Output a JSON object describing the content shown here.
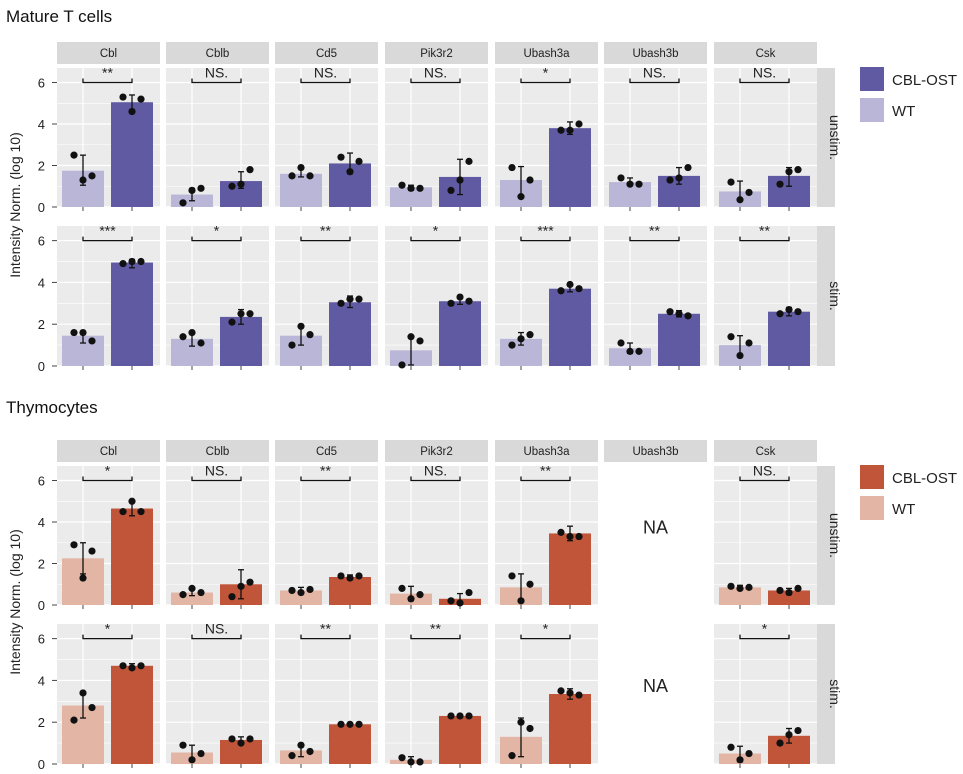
{
  "colors": {
    "panel_bg": "#ebebeb",
    "strip_bg": "#d9d9d9",
    "grid": "#ffffff",
    "mature_ost": "#5f5aa2",
    "mature_wt": "#b9b6d8",
    "thymo_ost": "#c0553a",
    "thymo_wt": "#e2b5a4",
    "point": "#111111",
    "text": "#222222"
  },
  "chart_data": [
    {
      "type": "bar",
      "title": "Mature T cells",
      "ylabel": "Intensity Norm. (log 10)",
      "ylim": [
        0,
        6.7
      ],
      "yticks": [
        "0",
        "2",
        "4",
        "6"
      ],
      "legend": {
        "entries": [
          "CBL-OST",
          "WT"
        ],
        "placement": "top-right"
      },
      "genes": [
        "Cbl",
        "Cblb",
        "Cd5",
        "Pik3r2",
        "Ubash3a",
        "Ubash3b",
        "Csk"
      ],
      "conditions": [
        "unstim.",
        "stim."
      ],
      "na_text": "NA",
      "groups": [
        "WT",
        "CBL-OST"
      ],
      "panels": [
        [
          {
            "wt": 1.75,
            "ost": 5.05,
            "wt_err": [
              1.05,
              2.5
            ],
            "ost_err": [
              4.7,
              5.4
            ],
            "wt_pts": [
              2.5,
              1.3,
              1.5
            ],
            "ost_pts": [
              5.3,
              4.6,
              5.2
            ],
            "sig": "**"
          },
          {
            "wt": 0.6,
            "ost": 1.25,
            "wt_err": [
              0.3,
              0.9
            ],
            "ost_err": [
              0.9,
              1.7
            ],
            "wt_pts": [
              0.2,
              0.8,
              0.9
            ],
            "ost_pts": [
              1.0,
              1.1,
              1.8
            ],
            "sig": "NS."
          },
          {
            "wt": 1.6,
            "ost": 2.1,
            "wt_err": [
              1.45,
              1.85
            ],
            "ost_err": [
              1.6,
              2.6
            ],
            "wt_pts": [
              1.5,
              1.9,
              1.5
            ],
            "ost_pts": [
              2.4,
              1.7,
              2.2
            ],
            "sig": "NS."
          },
          {
            "wt": 0.95,
            "ost": 1.45,
            "wt_err": [
              0.8,
              1.05
            ],
            "ost_err": [
              0.6,
              2.3
            ],
            "wt_pts": [
              1.05,
              0.9,
              0.9
            ],
            "ost_pts": [
              0.8,
              1.3,
              2.2
            ],
            "sig": "NS."
          },
          {
            "wt": 1.3,
            "ost": 3.8,
            "wt_err": [
              0.5,
              1.95
            ],
            "ost_err": [
              3.5,
              4.1
            ],
            "wt_pts": [
              1.9,
              0.5,
              1.3
            ],
            "ost_pts": [
              3.7,
              3.7,
              4.0
            ],
            "sig": "*"
          },
          {
            "wt": 1.2,
            "ost": 1.5,
            "wt_err": [
              1.1,
              1.4
            ],
            "ost_err": [
              1.1,
              1.9
            ],
            "wt_pts": [
              1.4,
              1.1,
              1.1
            ],
            "ost_pts": [
              1.3,
              1.4,
              1.9
            ],
            "sig": "NS."
          },
          {
            "wt": 0.75,
            "ost": 1.5,
            "wt_err": [
              0.35,
              1.25
            ],
            "ost_err": [
              1.0,
              1.9
            ],
            "wt_pts": [
              1.2,
              0.35,
              0.7
            ],
            "ost_pts": [
              1.1,
              1.7,
              1.8
            ],
            "sig": "NS."
          }
        ],
        [
          {
            "wt": 1.45,
            "ost": 4.95,
            "wt_err": [
              1.1,
              1.65
            ],
            "ost_err": [
              4.7,
              5.1
            ],
            "wt_pts": [
              1.6,
              1.6,
              1.2
            ],
            "ost_pts": [
              4.9,
              5.0,
              5.0
            ],
            "sig": "***"
          },
          {
            "wt": 1.3,
            "ost": 2.35,
            "wt_err": [
              0.95,
              1.65
            ],
            "ost_err": [
              2.0,
              2.7
            ],
            "wt_pts": [
              1.4,
              1.6,
              1.1
            ],
            "ost_pts": [
              2.1,
              2.5,
              2.5
            ],
            "sig": "*"
          },
          {
            "wt": 1.45,
            "ost": 3.05,
            "wt_err": [
              1.0,
              1.9
            ],
            "ost_err": [
              2.8,
              3.35
            ],
            "wt_pts": [
              1.0,
              1.9,
              1.5
            ],
            "ost_pts": [
              3.0,
              3.2,
              3.2
            ],
            "sig": "**"
          },
          {
            "wt": 0.75,
            "ost": 3.1,
            "wt_err": [
              0.05,
              1.45
            ],
            "ost_err": [
              2.95,
              3.25
            ],
            "wt_pts": [
              0.05,
              1.4,
              1.2
            ],
            "ost_pts": [
              3.0,
              3.3,
              3.1
            ],
            "sig": "*"
          },
          {
            "wt": 1.3,
            "ost": 3.7,
            "wt_err": [
              1.0,
              1.6
            ],
            "ost_err": [
              3.55,
              3.9
            ],
            "wt_pts": [
              1.0,
              1.3,
              1.5
            ],
            "ost_pts": [
              3.6,
              3.9,
              3.7
            ],
            "sig": "***"
          },
          {
            "wt": 0.85,
            "ost": 2.5,
            "wt_err": [
              0.6,
              1.1
            ],
            "ost_err": [
              2.35,
              2.65
            ],
            "wt_pts": [
              1.1,
              0.7,
              0.7
            ],
            "ost_pts": [
              2.6,
              2.5,
              2.4
            ],
            "sig": "**"
          },
          {
            "wt": 1.0,
            "ost": 2.6,
            "wt_err": [
              0.5,
              1.45
            ],
            "ost_err": [
              2.4,
              2.8
            ],
            "wt_pts": [
              1.4,
              0.5,
              1.1
            ],
            "ost_pts": [
              2.5,
              2.7,
              2.6
            ],
            "sig": "**"
          }
        ]
      ]
    },
    {
      "type": "bar",
      "title": "Thymocytes",
      "ylabel": "Intensity Norm. (log 10)",
      "ylim": [
        0,
        6.7
      ],
      "yticks": [
        "0",
        "2",
        "4",
        "6"
      ],
      "legend": {
        "entries": [
          "CBL-OST",
          "WT"
        ],
        "placement": "top-right"
      },
      "genes": [
        "Cbl",
        "Cblb",
        "Cd5",
        "Pik3r2",
        "Ubash3a",
        "Ubash3b",
        "Csk"
      ],
      "conditions": [
        "unstim.",
        "stim."
      ],
      "na_text": "NA",
      "groups": [
        "WT",
        "CBL-OST"
      ],
      "panels": [
        [
          {
            "wt": 2.25,
            "ost": 4.65,
            "wt_err": [
              1.5,
              3.0
            ],
            "ost_err": [
              4.3,
              5.0
            ],
            "wt_pts": [
              2.9,
              1.3,
              2.6
            ],
            "ost_pts": [
              4.5,
              5.0,
              4.5
            ],
            "sig": "*"
          },
          {
            "wt": 0.6,
            "ost": 1.0,
            "wt_err": [
              0.45,
              0.8
            ],
            "ost_err": [
              0.3,
              1.7
            ],
            "wt_pts": [
              0.5,
              0.8,
              0.6
            ],
            "ost_pts": [
              0.4,
              0.9,
              1.1
            ],
            "sig": "NS."
          },
          {
            "wt": 0.7,
            "ost": 1.35,
            "wt_err": [
              0.55,
              0.85
            ],
            "ost_err": [
              1.3,
              1.45
            ],
            "wt_pts": [
              0.7,
              0.6,
              0.75
            ],
            "ost_pts": [
              1.4,
              1.3,
              1.4
            ],
            "sig": "**"
          },
          {
            "wt": 0.55,
            "ost": 0.3,
            "wt_err": [
              0.2,
              0.9
            ],
            "ost_err": [
              0.05,
              0.55
            ],
            "wt_pts": [
              0.8,
              0.3,
              0.5
            ],
            "ost_pts": [
              0.2,
              0.1,
              0.6
            ],
            "sig": "NS."
          },
          {
            "wt": 0.85,
            "ost": 3.45,
            "wt_err": [
              0.2,
              1.5
            ],
            "ost_err": [
              3.1,
              3.8
            ],
            "wt_pts": [
              1.4,
              0.2,
              1.0
            ],
            "ost_pts": [
              3.5,
              3.3,
              3.3
            ],
            "sig": "**"
          },
          null,
          {
            "wt": 0.85,
            "ost": 0.7,
            "wt_err": [
              0.75,
              0.95
            ],
            "ost_err": [
              0.5,
              0.8
            ],
            "wt_pts": [
              0.9,
              0.8,
              0.85
            ],
            "ost_pts": [
              0.7,
              0.6,
              0.8
            ],
            "sig": "NS."
          }
        ],
        [
          {
            "wt": 2.8,
            "ost": 4.7,
            "wt_err": [
              2.2,
              3.4
            ],
            "ost_err": [
              4.6,
              4.8
            ],
            "wt_pts": [
              2.1,
              3.4,
              2.7
            ],
            "ost_pts": [
              4.7,
              4.6,
              4.7
            ],
            "sig": "*"
          },
          {
            "wt": 0.55,
            "ost": 1.15,
            "wt_err": [
              0.2,
              0.9
            ],
            "ost_err": [
              1.0,
              1.3
            ],
            "wt_pts": [
              0.9,
              0.2,
              0.5
            ],
            "ost_pts": [
              1.2,
              1.0,
              1.2
            ],
            "sig": "NS."
          },
          {
            "wt": 0.65,
            "ost": 1.9,
            "wt_err": [
              0.35,
              0.95
            ],
            "ost_err": [
              1.85,
              1.95
            ],
            "wt_pts": [
              0.4,
              0.9,
              0.6
            ],
            "ost_pts": [
              1.9,
              1.9,
              1.9
            ],
            "sig": "**"
          },
          {
            "wt": 0.2,
            "ost": 2.3,
            "wt_err": [
              0.05,
              0.35
            ],
            "ost_err": [
              2.25,
              2.35
            ],
            "wt_pts": [
              0.3,
              0.1,
              0.1
            ],
            "ost_pts": [
              2.3,
              2.3,
              2.3
            ],
            "sig": "**"
          },
          {
            "wt": 1.3,
            "ost": 3.35,
            "wt_err": [
              0.35,
              2.2
            ],
            "ost_err": [
              3.1,
              3.6
            ],
            "wt_pts": [
              0.4,
              2.0,
              1.7
            ],
            "ost_pts": [
              3.5,
              3.4,
              3.3
            ],
            "sig": "*"
          },
          null,
          {
            "wt": 0.5,
            "ost": 1.35,
            "wt_err": [
              0.1,
              0.85
            ],
            "ost_err": [
              1.0,
              1.7
            ],
            "wt_pts": [
              0.8,
              0.2,
              0.5
            ],
            "ost_pts": [
              1.0,
              1.4,
              1.6
            ],
            "sig": "*"
          }
        ]
      ]
    }
  ]
}
